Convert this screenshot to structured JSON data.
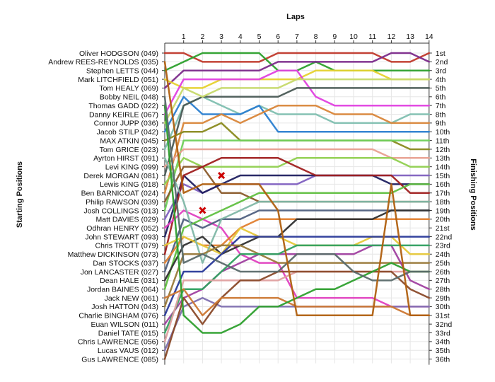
{
  "chart_data": {
    "type": "line",
    "title": "Laps",
    "ylabel_left": "Starting Positions",
    "ylabel_right": "Finishing Positions",
    "laps": [
      1,
      2,
      3,
      4,
      5,
      6,
      7,
      8,
      9,
      10,
      11,
      12,
      13,
      14
    ],
    "finish_labels": [
      "1st",
      "2nd",
      "3rd",
      "4th",
      "5th",
      "6th",
      "7th",
      "8th",
      "9th",
      "10th",
      "11th",
      "12th",
      "13th",
      "14th",
      "15th",
      "16th",
      "17th",
      "18th",
      "19th",
      "20th",
      "21st",
      "22nd",
      "23rd",
      "24th",
      "25th",
      "26th",
      "27th",
      "28th",
      "29th",
      "30th",
      "31st",
      "32nd",
      "33rd",
      "34th",
      "35th",
      "36th"
    ],
    "series": [
      {
        "name": "Oliver HODGSON (049)",
        "color": "#c0392b",
        "positions": [
          1,
          1,
          2,
          2,
          2,
          2,
          1,
          1,
          1,
          1,
          1,
          1,
          2,
          2,
          1
        ]
      },
      {
        "name": "Stephen LETTS (044)",
        "color": "#2ca02c",
        "positions": [
          3,
          2,
          1,
          1,
          1,
          1,
          3,
          3,
          2,
          3,
          3,
          3,
          3,
          3,
          3
        ]
      },
      {
        "name": "Tom HEALY (069)",
        "color": "#7b2a8a",
        "positions": [
          5,
          3,
          3,
          3,
          3,
          3,
          2,
          2,
          2,
          2,
          2,
          2,
          1,
          1,
          2
        ]
      },
      {
        "name": "Mark LITCHFIELD (051)",
        "color": "#e6d22e",
        "positions": [
          4,
          5,
          5,
          4,
          4,
          4,
          4,
          4,
          3,
          3,
          3,
          3,
          4,
          4,
          4
        ]
      },
      {
        "name": "Danny KEIRLE (067)",
        "color": "#e040e0",
        "positions": [
          8,
          4,
          4,
          4,
          4,
          4,
          3,
          3,
          6,
          7,
          7,
          7,
          7,
          7,
          7
        ]
      },
      {
        "name": "Tom GRICE (023)",
        "color": "#7fbfb0",
        "positions": [
          12,
          7,
          6,
          7,
          8,
          7,
          8,
          8,
          8,
          9,
          9,
          9,
          9,
          8,
          8
        ]
      },
      {
        "name": "Jacob STILP (042)",
        "color": "#2b7fd0",
        "positions": [
          10,
          6,
          8,
          8,
          8,
          7,
          10,
          10,
          10,
          10,
          10,
          10,
          10,
          10,
          10
        ]
      },
      {
        "name": "Derek MORGAN (081)",
        "color": "#4a5a55",
        "positions": [
          15,
          7,
          6,
          6,
          6,
          6,
          6,
          5,
          5,
          5,
          5,
          5,
          5,
          5,
          5
        ]
      },
      {
        "name": "Connor JUPP (036)",
        "color": "#c6d96a",
        "positions": [
          9,
          5,
          6,
          5,
          5,
          5,
          5,
          4,
          4,
          4,
          4,
          4,
          4,
          4,
          4
        ]
      },
      {
        "name": "Ben BARNICOAT (024)",
        "color": "#d9863a",
        "positions": [
          17,
          9,
          9,
          8,
          9,
          8,
          7,
          7,
          7,
          8,
          8,
          8,
          9,
          9,
          9
        ]
      },
      {
        "name": "MAX ATKIN (045)",
        "color": "#8a8a1f",
        "positions": [
          11,
          10,
          10,
          9,
          11,
          11,
          11,
          11,
          11,
          11,
          11,
          11,
          11,
          12,
          12
        ]
      },
      {
        "name": "Josh COLLINGS (013)",
        "color": "#6fd05a",
        "positions": [
          19,
          11,
          11,
          11,
          11,
          11,
          11,
          11,
          11,
          11,
          11,
          11,
          11,
          11,
          11
        ]
      },
      {
        "name": "Levi KING (099)",
        "color": "#e8a090",
        "positions": [
          14,
          12,
          12,
          12,
          12,
          12,
          12,
          12,
          12,
          12,
          12,
          12,
          13,
          13,
          13
        ]
      },
      {
        "name": "Lewis KING (018)",
        "color": "#90d050",
        "positions": [
          16,
          13,
          14,
          14,
          14,
          14,
          14,
          13,
          13,
          13,
          13,
          13,
          13,
          14,
          14
        ]
      },
      {
        "name": "Philip RAWSON (039)",
        "color": "#8a5a2a",
        "positions": [
          18,
          14,
          14,
          17,
          17,
          18,
          18,
          18,
          18,
          18,
          18,
          18,
          18,
          18,
          18
        ]
      },
      {
        "name": "Matt DAVIES (029)",
        "color": "#8060c0",
        "positions": [
          20,
          16,
          17,
          16,
          16,
          16,
          16,
          16,
          15,
          15,
          15,
          15,
          15,
          15,
          15
        ]
      },
      {
        "name": "John STEWART (093)",
        "color": "#202060",
        "positions": [
          22,
          15,
          17,
          16,
          15,
          15,
          15,
          15,
          15,
          15,
          15,
          15,
          16,
          16,
          16
        ]
      },
      {
        "name": "Matthew DICKINSON (073)",
        "color": "#a02020",
        "positions": [
          24,
          15,
          14,
          13,
          13,
          13,
          13,
          14,
          15,
          15,
          15,
          15,
          15,
          17,
          17
        ]
      },
      {
        "name": "Odhran HENRY (052)",
        "color": "#e040c0",
        "positions": [
          21,
          19,
          20,
          21,
          24,
          25,
          25,
          29,
          29,
          29,
          29,
          29,
          30,
          30,
          30
        ]
      },
      {
        "name": "Jon LANCASTER (027)",
        "color": "#506080",
        "positions": [
          26,
          20,
          21,
          20,
          20,
          19,
          19,
          19,
          19,
          19,
          19,
          19,
          19,
          19,
          19
        ]
      },
      {
        "name": "Jordan BAINES (064)",
        "color": "#60c040",
        "positions": [
          28,
          21,
          20,
          19,
          18,
          17,
          17,
          17,
          17,
          17,
          17,
          17,
          17,
          16,
          16
        ]
      },
      {
        "name": "Dan STOCKS (037)",
        "color": "#e08030",
        "positions": [
          25,
          22,
          23,
          23,
          21,
          20,
          20,
          20,
          20,
          20,
          20,
          20,
          20,
          20,
          20
        ]
      },
      {
        "name": "Dean HALE (031)",
        "color": "#303030",
        "positions": [
          27,
          23,
          22,
          24,
          23,
          22,
          22,
          20,
          20,
          20,
          20,
          20,
          19,
          19,
          19
        ]
      },
      {
        "name": "Chris TROTT (079)",
        "color": "#e6c83a",
        "positions": [
          23,
          22,
          23,
          24,
          21,
          22,
          22,
          23,
          23,
          23,
          23,
          22,
          22,
          24,
          24
        ]
      },
      {
        "name": "Ayrton HIRST (091)",
        "color": "#7fb7a7",
        "positions": [
          13,
          18,
          25,
          20,
          19,
          18,
          18,
          18,
          18,
          18,
          18,
          18,
          18,
          18,
          18
        ]
      },
      {
        "name": "Charlie BINGHAM (076)",
        "color": "#2a3a9a",
        "positions": [
          31,
          26,
          26,
          24,
          22,
          22,
          22,
          22,
          22,
          22,
          22,
          22,
          22,
          22,
          22
        ]
      },
      {
        "name": "Josh HATTON (043)",
        "color": "#9a7a3a",
        "positions": [
          30,
          24,
          24,
          23,
          23,
          24,
          25,
          25,
          25,
          25,
          25,
          25,
          25,
          25,
          25
        ]
      },
      {
        "name": "Euan WILSON (011)",
        "color": "#a040a0",
        "positions": [
          32,
          29,
          28,
          26,
          25,
          24,
          24,
          24,
          24,
          24,
          24,
          23,
          23,
          27,
          28
        ]
      },
      {
        "name": "Daniel TATE (015)",
        "color": "#30a060",
        "positions": [
          33,
          28,
          28,
          26,
          24,
          24,
          24,
          23,
          23,
          23,
          23,
          23,
          23,
          23,
          23
        ]
      },
      {
        "name": "Chris LAWRENCE (056)",
        "color": "#e0a0a0",
        "positions": [
          34,
          27,
          27,
          27,
          27,
          27,
          27,
          26,
          26,
          26,
          26,
          26,
          26,
          26,
          26
        ]
      },
      {
        "name": "Lucas VAUS (012)",
        "color": "#8070b0",
        "positions": [
          35,
          30,
          29,
          30,
          30,
          30,
          30,
          30,
          30,
          30,
          30,
          30,
          30,
          30,
          30
        ]
      },
      {
        "name": "Gus LAWRENCE (085)",
        "color": "#8a4a2a",
        "positions": [
          36,
          29,
          32,
          29,
          27,
          27,
          26,
          26,
          26,
          26,
          26,
          26,
          26,
          28,
          29
        ]
      },
      {
        "name": "Jack NEW (061)",
        "color": "#cc7733",
        "positions": [
          29,
          28,
          31,
          29,
          29,
          29,
          29,
          30,
          30,
          30,
          30,
          30,
          30,
          31,
          31
        ]
      },
      {
        "name": "Thomas GADD (022)",
        "color": "#2ea02e",
        "positions": [
          7,
          31,
          33,
          33,
          32,
          30,
          30,
          29,
          28,
          28,
          27,
          26,
          25,
          26,
          26
        ]
      },
      {
        "name": "Bobby NEIL (048)",
        "color": "#5a6a6a",
        "positions": [
          6,
          25,
          24,
          25,
          26,
          26,
          26,
          24,
          24,
          24,
          26,
          27,
          27,
          26,
          26
        ]
      },
      {
        "name": "Andrew REES-REYNOLDS (035)",
        "color": "#b06010",
        "positions": [
          2,
          17,
          16,
          16,
          16,
          16,
          19,
          31,
          31,
          31,
          31,
          31,
          16,
          31,
          31
        ]
      }
    ],
    "retirement_markers": [
      {
        "lap": 2,
        "position": 19,
        "series": "Odhran HENRY (052)"
      },
      {
        "lap": 3,
        "position": 15,
        "series": "Matthew DICKINSON (073)"
      }
    ],
    "grid": true
  }
}
